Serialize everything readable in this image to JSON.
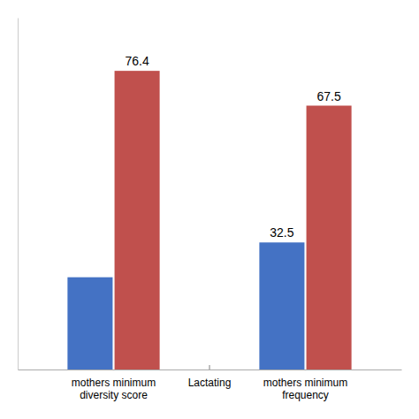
{
  "chart_data": {
    "type": "bar",
    "categories": [
      "mothers minimum\ndiversity score",
      "mothers minimum\nfrequency"
    ],
    "series": [
      {
        "color": "#4472C4",
        "values": [
          23.6,
          32.5
        ],
        "value_labels": [
          null,
          "32.5"
        ]
      },
      {
        "color": "#C0504D",
        "values": [
          76.4,
          67.5
        ]
      }
    ],
    "annotations": [
      "Lactating"
    ],
    "ylim": [
      0,
      90
    ],
    "data_labels": true,
    "tick_labels": "x"
  }
}
